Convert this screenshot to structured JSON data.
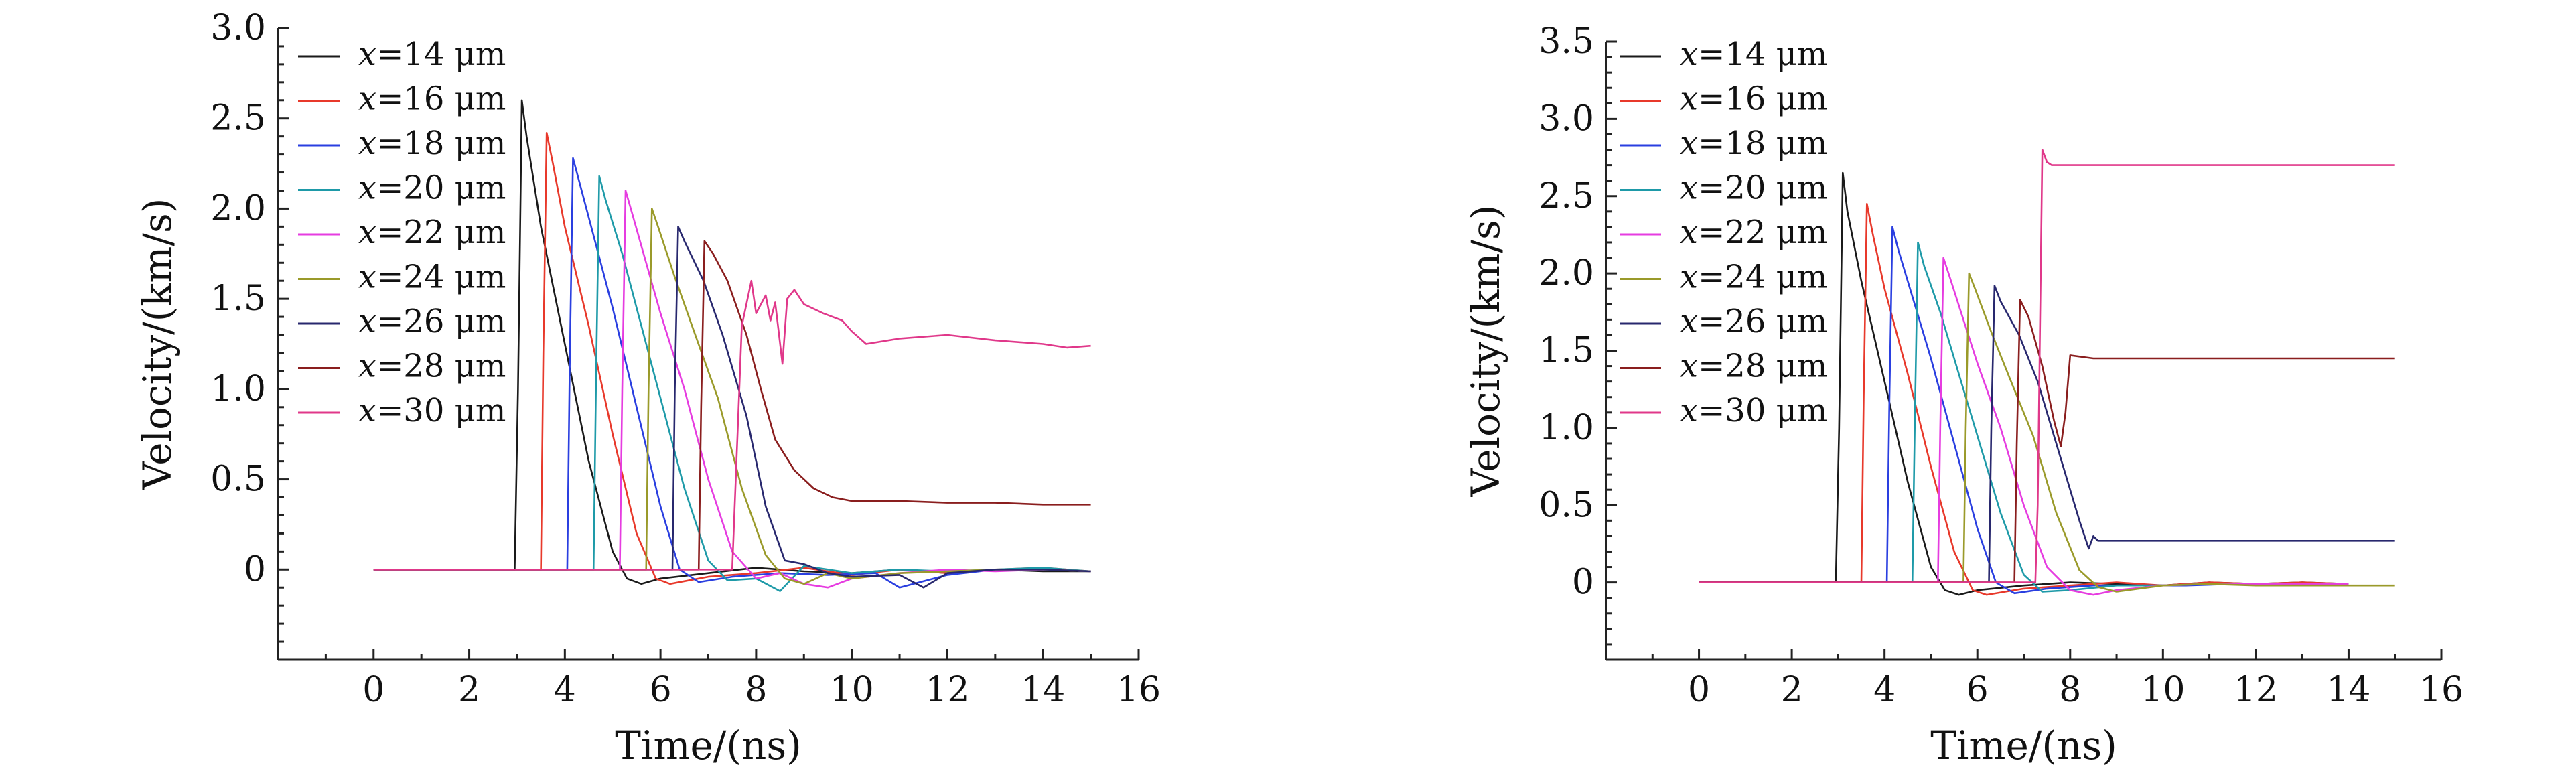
{
  "chart_data": [
    {
      "type": "line",
      "title": "",
      "xlabel": "Time/(ns)",
      "ylabel": "Velocity/(km/s)",
      "xlim": [
        -2,
        16
      ],
      "ylim": [
        -0.5,
        3.0
      ],
      "xticks": [
        0,
        2,
        4,
        6,
        8,
        10,
        12,
        14,
        16
      ],
      "yticks": [
        0,
        0.5,
        1.0,
        1.5,
        2.0,
        2.5,
        3.0
      ],
      "ytick_labels": [
        "0",
        "0.5",
        "1.0",
        "1.5",
        "2.0",
        "2.5",
        "3.0"
      ],
      "grid": false,
      "legend_position": "top-left",
      "series": [
        {
          "var": "x",
          "name": "=14 μm",
          "color": "#1a1a1a",
          "x": [
            0,
            2.95,
            3.02,
            3.1,
            3.2,
            3.5,
            4.0,
            4.5,
            5.0,
            5.3,
            5.6,
            6.0,
            7.0,
            8.0,
            9.0,
            10.0,
            11.0,
            12.0,
            13.0,
            14.0,
            15.0
          ],
          "y": [
            0,
            0,
            1.0,
            2.6,
            2.4,
            1.9,
            1.25,
            0.6,
            0.1,
            -0.05,
            -0.08,
            -0.05,
            -0.02,
            0.01,
            -0.01,
            -0.02,
            0.0,
            -0.02,
            0.0,
            -0.01,
            -0.01
          ]
        },
        {
          "var": "x",
          "name": "=16 μm",
          "color": "#e8392b",
          "x": [
            0,
            3.5,
            3.55,
            3.62,
            3.75,
            4.0,
            4.5,
            5.0,
            5.5,
            5.9,
            6.2,
            7.0,
            8.0,
            9.0,
            10.0,
            11.0,
            12.0,
            13.0,
            14.0,
            15.0
          ],
          "y": [
            0,
            0,
            1.2,
            2.42,
            2.25,
            1.9,
            1.35,
            0.75,
            0.2,
            -0.05,
            -0.08,
            -0.04,
            -0.02,
            0.01,
            -0.03,
            0.0,
            -0.02,
            0.0,
            0.01,
            -0.01
          ]
        },
        {
          "var": "x",
          "name": "=18 μm",
          "color": "#2a3fe0",
          "x": [
            0,
            4.05,
            4.1,
            4.17,
            4.3,
            4.6,
            5.0,
            5.5,
            6.0,
            6.4,
            6.8,
            7.5,
            8.5,
            9.5,
            10.5,
            11.0,
            12.0,
            13.0,
            14.0,
            15.0
          ],
          "y": [
            0,
            0,
            1.1,
            2.28,
            2.15,
            1.85,
            1.45,
            0.9,
            0.35,
            0.0,
            -0.07,
            -0.04,
            -0.02,
            -0.03,
            -0.02,
            -0.1,
            -0.03,
            0.0,
            0.0,
            -0.01
          ]
        },
        {
          "var": "x",
          "name": "=20 μm",
          "color": "#1e9aa8",
          "x": [
            0,
            4.6,
            4.65,
            4.72,
            4.85,
            5.2,
            5.6,
            6.0,
            6.5,
            7.0,
            7.4,
            8.0,
            8.5,
            9.0,
            10.0,
            11.0,
            12.0,
            13.0,
            14.0,
            15.0
          ],
          "y": [
            0,
            0,
            1.0,
            2.18,
            2.05,
            1.75,
            1.35,
            0.95,
            0.45,
            0.05,
            -0.06,
            -0.05,
            -0.12,
            0.02,
            -0.02,
            0.0,
            -0.01,
            0.0,
            0.01,
            -0.01
          ]
        },
        {
          "var": "x",
          "name": "=22 μm",
          "color": "#e63ce0",
          "x": [
            0,
            5.15,
            5.2,
            5.27,
            5.4,
            5.7,
            6.0,
            6.5,
            7.0,
            7.5,
            8.0,
            8.5,
            9.0,
            9.5,
            10.0,
            11.0,
            12.0,
            13.0,
            14.0,
            15.0
          ],
          "y": [
            0,
            0,
            1.0,
            2.1,
            1.98,
            1.7,
            1.42,
            1.0,
            0.5,
            0.1,
            -0.05,
            -0.02,
            -0.08,
            -0.1,
            -0.05,
            -0.02,
            0.0,
            -0.01,
            0.0,
            -0.01
          ]
        },
        {
          "var": "x",
          "name": "=24 μm",
          "color": "#9a9a2a",
          "x": [
            0,
            5.7,
            5.75,
            5.82,
            5.95,
            6.3,
            6.7,
            7.2,
            7.7,
            8.2,
            8.6,
            9.0,
            9.5,
            10.0,
            11.0,
            12.0,
            13.0,
            14.0,
            15.0
          ],
          "y": [
            0,
            0,
            1.0,
            2.0,
            1.9,
            1.62,
            1.32,
            0.95,
            0.45,
            0.08,
            -0.05,
            -0.08,
            -0.02,
            -0.05,
            -0.02,
            -0.01,
            0.0,
            0.0,
            -0.01
          ]
        },
        {
          "var": "x",
          "name": "=26 μm",
          "color": "#28286e",
          "x": [
            0,
            6.25,
            6.3,
            6.37,
            6.5,
            6.9,
            7.3,
            7.8,
            8.2,
            8.6,
            9.0,
            9.5,
            10.0,
            11.0,
            11.5,
            12.0,
            13.0,
            14.0,
            15.0
          ],
          "y": [
            0,
            0,
            1.0,
            1.9,
            1.82,
            1.6,
            1.3,
            0.85,
            0.35,
            0.05,
            0.03,
            -0.02,
            -0.04,
            -0.03,
            -0.1,
            -0.02,
            0.0,
            0.0,
            -0.01
          ]
        },
        {
          "var": "x",
          "name": "=28 μm",
          "color": "#8a1e1e",
          "x": [
            0,
            6.8,
            6.85,
            6.92,
            7.1,
            7.4,
            7.8,
            8.1,
            8.4,
            8.8,
            9.2,
            9.6,
            10.0,
            11.0,
            12.0,
            13.0,
            14.0,
            15.0
          ],
          "y": [
            0,
            0,
            0.9,
            1.82,
            1.75,
            1.6,
            1.3,
            1.0,
            0.72,
            0.55,
            0.45,
            0.4,
            0.38,
            0.38,
            0.37,
            0.37,
            0.36,
            0.36
          ]
        },
        {
          "var": "x",
          "name": "=30 μm",
          "color": "#e0388a",
          "x": [
            0,
            7.5,
            7.7,
            7.9,
            8.0,
            8.2,
            8.3,
            8.4,
            8.55,
            8.65,
            8.8,
            9.0,
            9.4,
            9.8,
            10.0,
            10.3,
            11.0,
            12.0,
            13.0,
            14.0,
            14.5,
            15.0
          ],
          "y": [
            0,
            0,
            1.35,
            1.6,
            1.42,
            1.52,
            1.38,
            1.48,
            1.14,
            1.5,
            1.55,
            1.47,
            1.42,
            1.38,
            1.32,
            1.25,
            1.28,
            1.3,
            1.27,
            1.25,
            1.23,
            1.24
          ]
        }
      ]
    },
    {
      "type": "line",
      "title": "",
      "xlabel": "Time/(ns)",
      "ylabel": "Velocity/(km/s)",
      "xlim": [
        -2,
        16
      ],
      "ylim": [
        -0.5,
        3.5
      ],
      "xticks": [
        0,
        2,
        4,
        6,
        8,
        10,
        12,
        14,
        16
      ],
      "yticks": [
        0,
        0.5,
        1.0,
        1.5,
        2.0,
        2.5,
        3.0,
        3.5
      ],
      "ytick_labels": [
        "0",
        "0.5",
        "1.0",
        "1.5",
        "2.0",
        "2.5",
        "3.0",
        "3.5"
      ],
      "grid": false,
      "legend_position": "top-left",
      "series": [
        {
          "var": "x",
          "name": "=14 μm",
          "color": "#1a1a1a",
          "x": [
            0,
            2.95,
            3.02,
            3.1,
            3.2,
            3.5,
            4.0,
            4.5,
            5.0,
            5.3,
            5.6,
            6.0,
            7.0,
            8.0,
            9.0,
            10.0,
            11.0,
            12.0,
            13.0,
            14.0
          ],
          "y": [
            0,
            0,
            1.0,
            2.65,
            2.4,
            1.95,
            1.3,
            0.65,
            0.1,
            -0.05,
            -0.08,
            -0.05,
            -0.02,
            0.0,
            -0.01,
            -0.02,
            0.0,
            -0.01,
            0.0,
            -0.01
          ]
        },
        {
          "var": "x",
          "name": "=16 μm",
          "color": "#e8392b",
          "x": [
            0,
            3.5,
            3.55,
            3.62,
            3.75,
            4.0,
            4.5,
            5.0,
            5.5,
            5.9,
            6.2,
            7.0,
            8.0,
            9.0,
            10.0,
            11.0,
            12.0,
            13.0,
            14.0
          ],
          "y": [
            0,
            0,
            1.2,
            2.45,
            2.25,
            1.9,
            1.35,
            0.75,
            0.2,
            -0.05,
            -0.08,
            -0.04,
            -0.02,
            0.0,
            -0.02,
            0.0,
            -0.01,
            0.0,
            -0.01
          ]
        },
        {
          "var": "x",
          "name": "=18 μm",
          "color": "#2a3fe0",
          "x": [
            0,
            4.05,
            4.1,
            4.17,
            4.3,
            4.6,
            5.0,
            5.5,
            6.0,
            6.4,
            6.8,
            7.5,
            8.5,
            9.5,
            10.5,
            11.5,
            12.5,
            13.5,
            14.0
          ],
          "y": [
            0,
            0,
            1.1,
            2.3,
            2.15,
            1.85,
            1.45,
            0.9,
            0.35,
            0.0,
            -0.07,
            -0.04,
            -0.02,
            -0.02,
            -0.02,
            -0.01,
            -0.01,
            -0.01,
            -0.01
          ]
        },
        {
          "var": "x",
          "name": "=20 μm",
          "color": "#1e9aa8",
          "x": [
            0,
            4.6,
            4.65,
            4.72,
            4.85,
            5.2,
            5.6,
            6.0,
            6.5,
            7.0,
            7.4,
            8.0,
            9.0,
            10.0,
            11.0,
            12.0,
            13.0,
            14.0
          ],
          "y": [
            0,
            0,
            1.0,
            2.2,
            2.05,
            1.75,
            1.35,
            0.95,
            0.45,
            0.05,
            -0.06,
            -0.05,
            -0.02,
            -0.02,
            -0.01,
            -0.01,
            -0.02,
            -0.01
          ]
        },
        {
          "var": "x",
          "name": "=22 μm",
          "color": "#e63ce0",
          "x": [
            0,
            5.15,
            5.2,
            5.27,
            5.4,
            5.7,
            6.0,
            6.5,
            7.0,
            7.5,
            8.0,
            8.5,
            9.0,
            10.0,
            11.0,
            12.0,
            13.0,
            14.0
          ],
          "y": [
            0,
            0,
            1.0,
            2.1,
            1.98,
            1.7,
            1.42,
            1.0,
            0.5,
            0.1,
            -0.05,
            -0.08,
            -0.05,
            -0.02,
            -0.01,
            -0.01,
            -0.01,
            -0.01
          ]
        },
        {
          "var": "x",
          "name": "=24 μm",
          "color": "#9a9a2a",
          "x": [
            0,
            5.7,
            5.75,
            5.82,
            5.95,
            6.3,
            6.7,
            7.2,
            7.7,
            8.2,
            8.6,
            9.0,
            10.0,
            11.0,
            12.0,
            13.0,
            14.0,
            15.0
          ],
          "y": [
            0,
            0,
            1.0,
            2.0,
            1.9,
            1.62,
            1.32,
            0.95,
            0.45,
            0.08,
            -0.03,
            -0.06,
            -0.02,
            -0.01,
            -0.02,
            -0.02,
            -0.02,
            -0.02
          ]
        },
        {
          "var": "x",
          "name": "=26 μm",
          "color": "#28286e",
          "x": [
            0,
            6.25,
            6.3,
            6.37,
            6.5,
            6.9,
            7.3,
            7.8,
            8.2,
            8.4,
            8.5,
            8.6,
            9.0,
            10.0,
            11.0,
            12.0,
            13.0,
            14.0,
            15.0
          ],
          "y": [
            0,
            0,
            1.0,
            1.92,
            1.82,
            1.6,
            1.3,
            0.8,
            0.4,
            0.22,
            0.3,
            0.27,
            0.27,
            0.27,
            0.27,
            0.27,
            0.27,
            0.27,
            0.27
          ]
        },
        {
          "var": "x",
          "name": "=28 μm",
          "color": "#8a1e1e",
          "x": [
            0,
            6.8,
            6.85,
            6.92,
            7.1,
            7.4,
            7.65,
            7.8,
            7.9,
            8.0,
            8.5,
            9.0,
            10.0,
            11.0,
            12.0,
            13.0,
            14.0,
            15.0
          ],
          "y": [
            0,
            0,
            0.9,
            1.83,
            1.72,
            1.4,
            1.05,
            0.88,
            1.1,
            1.47,
            1.45,
            1.45,
            1.45,
            1.45,
            1.45,
            1.45,
            1.45,
            1.45
          ]
        },
        {
          "var": "x",
          "name": "=30 μm",
          "color": "#e0388a",
          "x": [
            0,
            7.25,
            7.3,
            7.4,
            7.5,
            7.6,
            8.0,
            9.0,
            10.0,
            11.0,
            12.0,
            13.0,
            14.0,
            15.0
          ],
          "y": [
            0,
            0,
            0.5,
            2.8,
            2.72,
            2.7,
            2.7,
            2.7,
            2.7,
            2.7,
            2.7,
            2.7,
            2.7,
            2.7
          ]
        }
      ]
    }
  ]
}
